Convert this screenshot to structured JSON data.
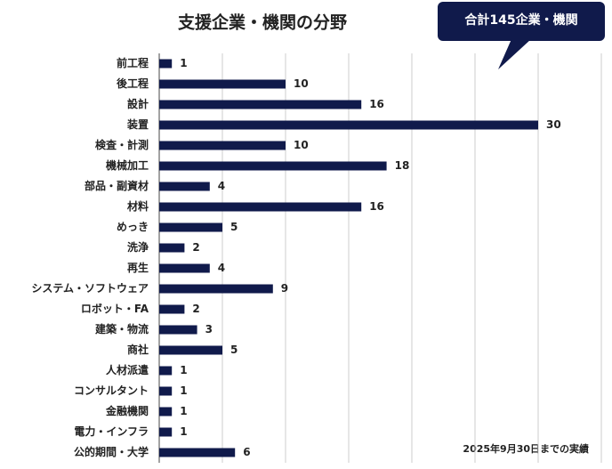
{
  "chart_data": {
    "type": "bar",
    "orientation": "horizontal",
    "title": "支援企業・機関の分野",
    "annotations": [
      "合計145企業・機関",
      "2025年9月30日までの実績"
    ],
    "categories": [
      "前工程",
      "後工程",
      "設計",
      "装置",
      "検査・計測",
      "機械加工",
      "部品・副資材",
      "材料",
      "めっき",
      "洗浄",
      "再生",
      "システム・ソフトウェア",
      "ロボット・FA",
      "建築・物流",
      "商社",
      "人材派遣",
      "コンサルタント",
      "金融機関",
      "電力・インフラ",
      "公的期間・大学"
    ],
    "values": [
      1,
      10,
      16,
      30,
      10,
      18,
      4,
      16,
      5,
      2,
      4,
      9,
      2,
      3,
      5,
      1,
      1,
      1,
      1,
      6
    ],
    "color": "#101a4b",
    "xlim": [
      0,
      35
    ],
    "xticks": [
      0,
      5,
      10,
      15,
      20,
      25,
      30,
      35
    ],
    "grid": true
  }
}
